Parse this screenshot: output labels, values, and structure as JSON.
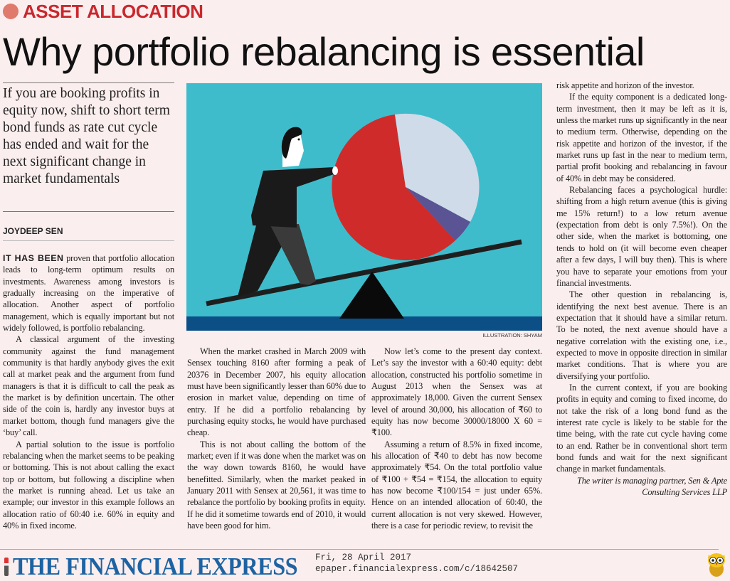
{
  "kicker": "ASSET ALLOCATION",
  "headline": "Why portfolio rebalancing is essential",
  "deck": "If you are booking profits in equity now, shift to short term bond funds as rate cut cycle has ended and wait for the next significant change in market fundamentals",
  "byline": "JOYDEEP SEN",
  "illustration": {
    "caption": "ILLUSTRATION: SHYAM",
    "colors": {
      "background": "#3fbccb",
      "band": "#0b4f86",
      "pie_red": "#d02b2b",
      "pie_light": "#cfdbe8",
      "pie_purple": "#5a5394",
      "figure": "#1a1a1a"
    }
  },
  "columns": {
    "col1": {
      "lead": "IT HAS BEEN",
      "p1": "proven that portfolio allocation leads to long-term optimum results on investments. Awareness among investors is gradually increasing on the imperative of allocation. Another aspect of portfolio management, which is equally important but not widely followed, is portfolio rebalancing.",
      "p2": "A classical argument of the investing community against the fund management community is that hardly anybody gives the exit call at market peak and the argument from fund managers is that it is difficult to call the peak as the market is by definition uncertain. The other side of the coin is, hardly any investor buys at market bottom, though fund managers give the ‘buy’ call.",
      "p3": "A partial solution to the issue is portfolio rebalancing when the market seems to be peaking or bottoming. This is not about calling the exact top or bottom, but following a discipline when the market is running ahead. Let us take an example; our investor in this example follows an allocation ratio of 60:40 i.e. 60% in equity and 40% in fixed income."
    },
    "col2": {
      "p1": "When the market crashed in March 2009 with Sensex touching 8160 after forming a peak of 20376 in December 2007, his equity allocation must have been significantly lesser than 60% due to erosion in market value, depending on time of entry. If he did a portfolio rebalancing by purchasing equity stocks, he would have purchased cheap.",
      "p2": "This is not about calling the bottom of the market; even if it was done when the market was on the way down towards 8160, he would have benefitted. Similarly, when the market peaked in January 2011 with Sensex at 20,561, it was time to rebalance the portfolio by booking profits in equity. If he did it sometime towards end of 2010, it would have been good for him."
    },
    "col3": {
      "p1": "Now let’s come to the present day context. Let’s say the investor with a 60:40 equity: debt allocation, constructed his portfolio sometime in August 2013 when the Sensex was at approximately 18,000. Given the current Sensex level of around 30,000, his allocation of ₹60 to equity has now become 30000/18000 X 60 = ₹100.",
      "p2": "Assuming a return of 8.5% in fixed income, his allocation of ₹40 to debt has now become approximately ₹54. On the total portfolio value of ₹100 + ₹54 = ₹154, the allocation to equity has now become ₹100/154 = just under 65%. Hence on an intended allocation of 60:40, the current allocation is not very skewed. However, there is a case for periodic review, to revisit the"
    },
    "col4": {
      "p0": "risk appetite and horizon of the investor.",
      "p1": "If the equity component is a dedicated long-term investment, then it may be left as it is, unless the market runs up significantly in the near to medium term. Otherwise, depending on the risk appetite and horizon of the investor, if the market runs up fast in the near to medium term, partial profit booking and rebalancing in favour of 40% in debt may be considered.",
      "p2": "Rebalancing faces a psychological hurdle: shifting from a high return avenue (this is giving me 15% return!) to a low return avenue (expectation from debt is only 7.5%!). On the other side, when the market is bottoming, one tends to hold on (it will become even cheaper after a few days, I will buy then). This is where you have to separate your emotions from your financial investments.",
      "p3": "The other question in rebalancing is, identifying the next best avenue. There is an expectation that it should have a similar return. To be noted, the next avenue should have a negative correlation with the existing one, i.e., expected to move in opposite direction in similar market conditions. That is where you are diversifying your portfolio.",
      "p4": "In the current context, if you are booking profits in equity and coming to fixed income, do not take the risk of a long bond fund as the interest rate cycle is likely to be stable for the time being, with the rate cut cycle having come to an end. Rather be in conventional short term bond funds and wait for the next significant change in market fundamentals.",
      "signoff": "The writer is managing partner, Sen & Apte Consulting Services LLP"
    }
  },
  "footer": {
    "logo": "THE FINANCIAL EXPRESS",
    "date": "Fri, 28 April 2017",
    "url": "epaper.financialexpress.com/c/18642507",
    "icon": "owl-icon"
  }
}
